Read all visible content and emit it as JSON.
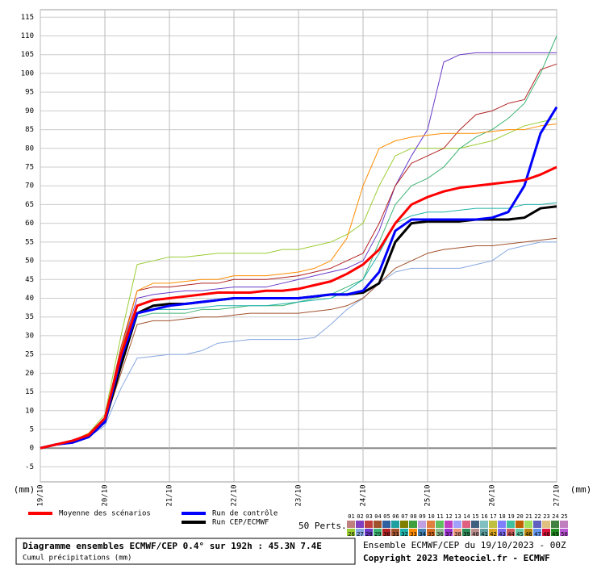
{
  "chart_data": {
    "type": "line",
    "y_unit_left": "(mm)",
    "y_unit_right": "(mm)",
    "x": [
      0,
      6,
      12,
      18,
      24,
      30,
      36,
      42,
      48,
      54,
      60,
      66,
      72,
      78,
      84,
      90,
      96,
      102,
      108,
      114,
      120,
      126,
      132,
      138,
      144,
      150,
      156,
      162,
      168,
      174,
      180,
      186,
      192
    ],
    "xlim": [
      0,
      192
    ],
    "xticks": [
      {
        "value": 0,
        "label": "19/10"
      },
      {
        "value": 24,
        "label": "20/10"
      },
      {
        "value": 48,
        "label": "21/10"
      },
      {
        "value": 72,
        "label": "22/10"
      },
      {
        "value": 96,
        "label": "23/10"
      },
      {
        "value": 120,
        "label": "24/10"
      },
      {
        "value": 144,
        "label": "25/10"
      },
      {
        "value": 168,
        "label": "26/10"
      },
      {
        "value": 192,
        "label": "27/10"
      }
    ],
    "ylim": [
      -9,
      117
    ],
    "yticks": [
      -5,
      0,
      5,
      10,
      15,
      20,
      25,
      30,
      35,
      40,
      45,
      50,
      55,
      60,
      65,
      70,
      75,
      80,
      85,
      90,
      95,
      100,
      105,
      110,
      115
    ],
    "grid": true,
    "perturbations": [
      {
        "color": "#9acd32",
        "values": [
          0,
          1,
          2,
          4,
          9,
          30,
          49,
          50,
          51,
          51,
          51.5,
          52,
          52,
          52,
          52,
          53,
          53,
          54,
          55,
          57,
          60,
          70,
          78,
          80,
          80,
          80,
          80,
          81,
          82,
          84,
          86,
          87,
          88
        ]
      },
      {
        "color": "#87a8e0",
        "values": [
          0,
          1,
          1.5,
          3,
          6,
          16,
          24,
          24.5,
          25,
          25,
          26,
          28,
          28.5,
          29,
          29,
          29,
          29,
          29.5,
          33,
          37,
          40,
          44,
          47,
          48,
          48,
          48,
          48,
          49,
          50,
          53,
          54,
          55,
          55
        ]
      },
      {
        "color": "#6a3ac8",
        "values": [
          0,
          1,
          2,
          4,
          8,
          26,
          40,
          41,
          41.5,
          42,
          42,
          42.5,
          43,
          43,
          43,
          44,
          45,
          46,
          47,
          48,
          50,
          58,
          70,
          78,
          85,
          103,
          105,
          105.5,
          105.5,
          105.5,
          105.5,
          105.5,
          105.5
        ]
      },
      {
        "color": "#3cb371",
        "values": [
          0,
          1,
          2,
          3,
          7,
          22,
          35,
          36,
          36,
          36,
          37,
          37,
          37.5,
          38,
          38,
          38,
          39,
          40,
          41,
          43,
          45,
          55,
          65,
          70,
          72,
          75,
          80,
          83,
          85,
          88,
          92,
          100,
          110
        ]
      },
      {
        "color": "#b22222",
        "values": [
          0,
          1,
          1.5,
          3,
          8,
          27,
          42,
          43,
          43,
          43.5,
          44,
          44,
          45,
          45,
          45,
          45.5,
          46,
          47,
          48,
          50,
          52,
          60,
          70,
          76,
          78,
          80,
          85,
          89,
          90,
          92,
          93,
          101,
          102.5
        ]
      },
      {
        "color": "#a0522d",
        "values": [
          0,
          1,
          1.5,
          3,
          7,
          20,
          33,
          34,
          34,
          34.5,
          35,
          35,
          35.5,
          36,
          36,
          36,
          36,
          36.5,
          37,
          38,
          40,
          44,
          48,
          50,
          52,
          53,
          53.5,
          54,
          54,
          54.5,
          55,
          55.5,
          56
        ]
      },
      {
        "color": "#20b2aa",
        "values": [
          0,
          1,
          2,
          3,
          7,
          23,
          36,
          37,
          37,
          37,
          37.5,
          38,
          38,
          38,
          38,
          38.5,
          39,
          39.5,
          40,
          42,
          45,
          52,
          60,
          62,
          63,
          63,
          63.5,
          64,
          64,
          64,
          65,
          65,
          65.5
        ]
      },
      {
        "color": "#ff8c00",
        "values": [
          0,
          1,
          2,
          4,
          8,
          26,
          42,
          44,
          44,
          44.5,
          45,
          45,
          46,
          46,
          46,
          46.5,
          47,
          48,
          50,
          56,
          70,
          80,
          82,
          83,
          83.5,
          84,
          84,
          84,
          84.5,
          85,
          85,
          86,
          86.5
        ]
      }
    ],
    "series": [
      {
        "name": "Run CEP/ECMWF",
        "color": "#000000",
        "values": [
          0,
          1,
          1.5,
          3,
          7,
          22,
          36,
          38,
          38.5,
          38.5,
          39,
          39.5,
          40,
          40,
          40,
          40,
          40,
          40.5,
          41,
          41,
          41.5,
          44,
          55,
          60,
          60.5,
          60.5,
          60.5,
          61,
          61,
          61,
          61.5,
          64,
          64.5
        ]
      },
      {
        "name": "Run de contrôle",
        "color": "#0000ff",
        "values": [
          0,
          1,
          1.5,
          3,
          7,
          24,
          36,
          37,
          38,
          38.5,
          39,
          39.5,
          40,
          40,
          40,
          40,
          40,
          40.5,
          41,
          41,
          42,
          47,
          58,
          61,
          61,
          61,
          61,
          61,
          61.5,
          63,
          70,
          84,
          91
        ]
      },
      {
        "name": "Moyenne des scénarios",
        "color": "#ff0000",
        "values": [
          0,
          1,
          2,
          3.5,
          8,
          25,
          38,
          39.5,
          40,
          40.5,
          41,
          41.5,
          41.5,
          41.5,
          42,
          42,
          42.5,
          43.5,
          44.5,
          46.5,
          49,
          53,
          60,
          65,
          67,
          68.5,
          69.5,
          70,
          70.5,
          71,
          71.5,
          73,
          75
        ]
      }
    ],
    "perts_label": "50 Perts.",
    "ensemble_legend": {
      "labels": [
        "01",
        "02",
        "03",
        "04",
        "05",
        "06",
        "07",
        "08",
        "09",
        "10",
        "11",
        "12",
        "13",
        "14",
        "15",
        "16",
        "17",
        "18",
        "19",
        "20",
        "21",
        "22",
        "23",
        "24",
        "25",
        "26",
        "27",
        "28",
        "29",
        "30",
        "31",
        "32",
        "33",
        "34",
        "35",
        "36",
        "37",
        "38",
        "39",
        "40",
        "41",
        "42",
        "43",
        "44",
        "45",
        "46",
        "47",
        "48",
        "49",
        "50"
      ],
      "colors": [
        "#c08080",
        "#8040c0",
        "#c04040",
        "#a0522d",
        "#3060a0",
        "#20a0a0",
        "#808000",
        "#40a040",
        "#c0a0e0",
        "#e08040",
        "#60c060",
        "#c040c0",
        "#a0a0ff",
        "#e06080",
        "#406080",
        "#80c0c0",
        "#c0c040",
        "#8080ff",
        "#40c0a0",
        "#c06000",
        "#a0e060",
        "#6060c0",
        "#e0c080",
        "#408040",
        "#c080c0",
        "#9acd32",
        "#87a8e0",
        "#6a3ac8",
        "#3cb371",
        "#b22222",
        "#a0522d",
        "#20b2aa",
        "#ff8c00",
        "#4682b4",
        "#d2691e",
        "#8fbc8f",
        "#9932cc",
        "#e9967a",
        "#2e8b57",
        "#bc8f8f",
        "#5f9ea0",
        "#daa520",
        "#7b68ee",
        "#cd5c5c",
        "#66cdaa",
        "#b8860b",
        "#6495ed",
        "#dc143c",
        "#228b22",
        "#ba55d3"
      ]
    },
    "footer_title": "Diagramme ensembles ECMWF/CEP 0.4° sur 192h : 45.3N 7.4E",
    "footer_subtitle": "Cumul précipitations (mm)",
    "run_info": "Ensemble ECMWF/CEP du 19/10/2023 - 00Z",
    "copyright": "Copyright 2023 Meteociel.fr - ECMWF"
  }
}
